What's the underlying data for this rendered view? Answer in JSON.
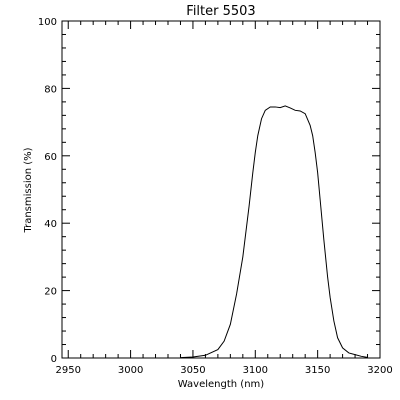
{
  "chart_data": {
    "type": "line",
    "title": "Filter 5503",
    "xlabel": "Wavelength (nm)",
    "ylabel": "Transmission (%)",
    "xlim": [
      2945,
      3200
    ],
    "ylim": [
      0,
      100
    ],
    "x_ticks": [
      2950,
      3000,
      3050,
      3100,
      3150,
      3200
    ],
    "y_ticks": [
      0,
      20,
      40,
      60,
      80,
      100
    ],
    "grid": false,
    "series": [
      {
        "x": [
          3040,
          3050,
          3060,
          3070,
          3075,
          3080,
          3085,
          3090,
          3095,
          3098,
          3100,
          3102,
          3105,
          3108,
          3112,
          3116,
          3120,
          3124,
          3128,
          3132,
          3136,
          3140,
          3144,
          3146,
          3148,
          3150,
          3152,
          3155,
          3158,
          3160,
          3163,
          3166,
          3170,
          3175,
          3180,
          3185,
          3190
        ],
        "y": [
          0.1,
          0.3,
          0.8,
          2.5,
          5,
          10,
          19,
          30,
          45,
          55,
          61,
          66,
          71,
          73.5,
          74.5,
          74.5,
          74.3,
          74.8,
          74.2,
          73.5,
          73.3,
          72.5,
          69,
          66,
          61,
          55,
          47,
          35,
          24,
          18,
          11,
          6,
          3,
          1.5,
          1.0,
          0.5,
          0.2
        ]
      }
    ]
  }
}
